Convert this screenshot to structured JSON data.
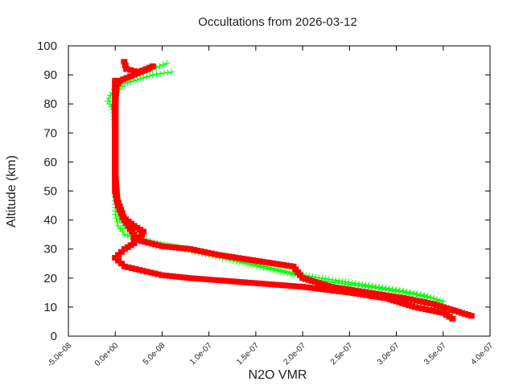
{
  "chart_data": {
    "type": "scatter",
    "title": "Occultations from 2026-03-12",
    "xlabel": "N2O VMR",
    "ylabel": "Altitude (km)",
    "xlim": [
      -5e-08,
      4e-07
    ],
    "ylim": [
      0,
      100
    ],
    "x_tick_labels": [
      "-5.0e-08",
      "0.0e+00",
      "5.0e-08",
      "1.0e-07",
      "1.5e-07",
      "2.0e-07",
      "2.5e-07",
      "3.0e-07",
      "3.5e-07",
      "4.0e-07"
    ],
    "x_ticks": [
      -5e-08,
      0,
      5e-08,
      1e-07,
      1.5e-07,
      2e-07,
      2.5e-07,
      3e-07,
      3.5e-07,
      4e-07
    ],
    "y_ticks": [
      0,
      10,
      20,
      30,
      40,
      50,
      60,
      70,
      80,
      90,
      100
    ],
    "grid": false,
    "legend": "none",
    "series": [
      {
        "color": "#00ff00",
        "marker": "plus",
        "connected": true,
        "profiles": [
          [
            [
              5.5e-08,
              94
            ],
            [
              4e-08,
              92
            ],
            [
              2e-08,
              90
            ],
            [
              5e-09,
              88
            ],
            [
              -5e-09,
              83
            ],
            [
              -8e-09,
              81
            ],
            [
              -2e-09,
              78
            ],
            [
              0,
              70
            ],
            [
              0,
              60
            ],
            [
              0,
              50
            ],
            [
              0,
              42
            ],
            [
              3e-09,
              38
            ],
            [
              1e-08,
              35
            ],
            [
              3e-08,
              33
            ],
            [
              6e-08,
              31
            ],
            [
              1e-07,
              28
            ],
            [
              1.4e-07,
              25
            ],
            [
              1.8e-07,
              22
            ],
            [
              2.2e-07,
              19
            ],
            [
              2.7e-07,
              17
            ],
            [
              3.1e-07,
              15
            ],
            [
              3.4e-07,
              13
            ],
            [
              3.5e-07,
              10
            ],
            [
              3.6e-07,
              8
            ]
          ],
          [
            [
              6e-08,
              91
            ],
            [
              4e-08,
              90
            ],
            [
              1e-08,
              87
            ],
            [
              -3e-09,
              82
            ],
            [
              0,
              75
            ],
            [
              0,
              55
            ],
            [
              3e-09,
              45
            ],
            [
              5e-09,
              40
            ],
            [
              1.5e-08,
              36
            ],
            [
              4e-08,
              32
            ],
            [
              8e-08,
              30
            ],
            [
              1.2e-07,
              27
            ],
            [
              1.6e-07,
              24
            ],
            [
              2e-07,
              21
            ],
            [
              2.6e-07,
              18
            ],
            [
              3e-07,
              16
            ],
            [
              3.3e-07,
              14
            ],
            [
              3.5e-07,
              12
            ],
            [
              3.4e-07,
              9
            ]
          ]
        ]
      },
      {
        "color": "#ff0000",
        "marker": "square",
        "connected": true,
        "profiles": [
          [
            [
              9.6e-09,
              94.5
            ],
            [
              1.2e-08,
              92
            ],
            [
              2.5e-08,
              91
            ],
            [
              3.5e-08,
              92
            ],
            [
              4e-08,
              93
            ],
            [
              2e-08,
              90
            ],
            [
              5e-09,
              88
            ],
            [
              1e-09,
              86
            ],
            [
              0,
              80
            ],
            [
              0,
              70
            ],
            [
              0,
              60
            ],
            [
              0,
              50
            ],
            [
              3e-09,
              45
            ],
            [
              8e-09,
              41
            ],
            [
              2e-08,
              38
            ],
            [
              3e-08,
              36
            ],
            [
              2.5e-08,
              33
            ],
            [
              5e-08,
              31
            ],
            [
              8e-08,
              30
            ],
            [
              1.1e-07,
              28
            ],
            [
              1.5e-07,
              26
            ],
            [
              1.9e-07,
              24
            ],
            [
              2e-07,
              20
            ],
            [
              2.3e-07,
              17
            ],
            [
              2.7e-07,
              15
            ],
            [
              3.1e-07,
              13
            ],
            [
              3.4e-07,
              11
            ],
            [
              3.6e-07,
              9
            ],
            [
              3.8e-07,
              7
            ]
          ],
          [
            [
              0,
              88
            ],
            [
              0,
              75
            ],
            [
              0,
              55
            ],
            [
              2e-09,
              47
            ],
            [
              1e-08,
              40
            ],
            [
              2e-08,
              35
            ],
            [
              2e-08,
              32
            ],
            [
              1e-08,
              30
            ],
            [
              0,
              27
            ],
            [
              1e-08,
              24
            ],
            [
              3e-08,
              22.5
            ],
            [
              5e-08,
              21
            ],
            [
              8e-08,
              20
            ],
            [
              1.2e-07,
              19
            ],
            [
              1.6e-07,
              18
            ],
            [
              2e-07,
              17
            ],
            [
              2.5e-07,
              15
            ],
            [
              2.9e-07,
              13
            ],
            [
              3.2e-07,
              10
            ],
            [
              3.5e-07,
              8
            ],
            [
              3.6e-07,
              6
            ]
          ]
        ]
      }
    ]
  }
}
